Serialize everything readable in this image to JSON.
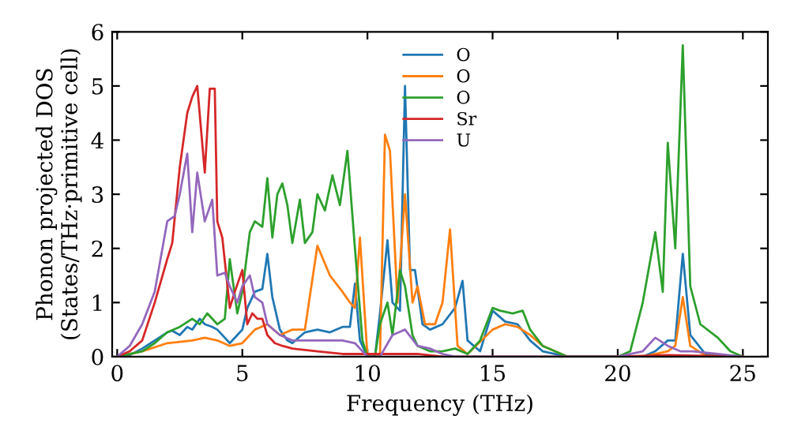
{
  "chart_data": {
    "type": "line",
    "xlabel": "Frequency (THz)",
    "ylabel": "Phonon projected DOS\n(States/THz·primitive cell)",
    "xlim": [
      -0.2,
      26
    ],
    "ylim": [
      0,
      6
    ],
    "xticks": [
      0,
      5,
      10,
      15,
      20,
      25
    ],
    "yticks": [
      0,
      1,
      2,
      3,
      4,
      5,
      6
    ],
    "legend": "top",
    "grid": false,
    "marker": "none",
    "line_style": "solid",
    "series": [
      {
        "name": "O",
        "color": "#1f77b4",
        "x": [
          0,
          0.5,
          1,
          1.5,
          2,
          2.2,
          2.5,
          2.8,
          3,
          3.3,
          3.5,
          3.8,
          4,
          4.3,
          4.5,
          4.8,
          5,
          5.2,
          5.5,
          5.8,
          6,
          6.2,
          6.5,
          6.8,
          7,
          7.5,
          8,
          8.5,
          9,
          9.3,
          9.5,
          9.7,
          10,
          10.3,
          10.5,
          10.8,
          11,
          11.3,
          11.5,
          11.7,
          11.9,
          12.2,
          12.5,
          13,
          13.5,
          13.8,
          14,
          14.5,
          15,
          15.5,
          16,
          16.5,
          17,
          18,
          20,
          21,
          21.5,
          22,
          22.3,
          22.6,
          22.9,
          23.5,
          24.5,
          25
        ],
        "values": [
          0,
          0.03,
          0.15,
          0.3,
          0.45,
          0.48,
          0.4,
          0.55,
          0.5,
          0.7,
          0.6,
          0.55,
          0.5,
          0.35,
          0.25,
          0.4,
          0.5,
          0.9,
          1.2,
          1.25,
          1.9,
          1.1,
          0.5,
          0.3,
          0.25,
          0.45,
          0.5,
          0.45,
          0.55,
          0.55,
          1.35,
          0.3,
          0,
          0,
          0.8,
          2.15,
          1.0,
          0.85,
          5.0,
          1.6,
          1.6,
          0.6,
          0.5,
          0.6,
          0.9,
          1.4,
          0.3,
          0.1,
          0.85,
          0.65,
          0.6,
          0.3,
          0.1,
          0,
          0,
          0,
          0.1,
          0.3,
          0.3,
          1.9,
          0.4,
          0.05,
          0.02,
          0
        ]
      },
      {
        "name": "O",
        "color": "#ff7f0e",
        "x": [
          0,
          1,
          2,
          3,
          3.5,
          4,
          4.5,
          5,
          5.5,
          6,
          6.5,
          7,
          7.5,
          8,
          8.5,
          9,
          9.3,
          9.5,
          9.7,
          10,
          10.5,
          10.7,
          10.9,
          11.2,
          11.5,
          11.8,
          12,
          12.3,
          12.7,
          13,
          13.3,
          13.6,
          14,
          15,
          15.5,
          16,
          16.5,
          17,
          18,
          20,
          21,
          22,
          22.3,
          22.6,
          22.9,
          23.5,
          25
        ],
        "values": [
          0,
          0.1,
          0.25,
          0.3,
          0.35,
          0.3,
          0.2,
          0.25,
          0.5,
          0.6,
          0.4,
          0.5,
          0.5,
          2.05,
          1.5,
          1.2,
          1.0,
          0.9,
          2.2,
          0,
          0,
          4.1,
          3.8,
          1.0,
          3.0,
          1.0,
          1.3,
          0.6,
          0.6,
          1.0,
          2.35,
          0.2,
          0.05,
          0.5,
          0.6,
          0.55,
          0.4,
          0.2,
          0,
          0,
          0,
          0.1,
          0.2,
          1.1,
          0.2,
          0.02,
          0
        ]
      },
      {
        "name": "O",
        "color": "#2ca02c",
        "x": [
          0,
          1,
          1.5,
          2,
          2.5,
          3,
          3.3,
          3.6,
          4,
          4.3,
          4.5,
          4.8,
          5,
          5.3,
          5.5,
          5.8,
          6,
          6.2,
          6.4,
          6.6,
          6.8,
          7,
          7.3,
          7.5,
          7.8,
          8,
          8.3,
          8.6,
          8.9,
          9.2,
          9.5,
          9.8,
          10,
          10.3,
          10.5,
          10.8,
          11,
          11.3,
          11.5,
          11.8,
          12,
          12.5,
          13,
          13.5,
          14,
          14.5,
          15,
          15.3,
          15.8,
          16.2,
          16.5,
          17,
          18,
          20,
          20.5,
          21,
          21.5,
          21.8,
          22,
          22.3,
          22.6,
          22.9,
          23.3,
          24,
          24.5,
          25
        ],
        "values": [
          0,
          0.1,
          0.25,
          0.45,
          0.55,
          0.7,
          0.6,
          0.8,
          0.6,
          0.7,
          1.8,
          0.8,
          1.2,
          2.3,
          2.5,
          2.4,
          3.3,
          2.2,
          3.0,
          3.2,
          2.8,
          2.1,
          2.9,
          2.1,
          2.3,
          3.0,
          2.7,
          3.35,
          2.8,
          3.8,
          2.0,
          0.3,
          0,
          0,
          0.6,
          1.0,
          0.4,
          1.6,
          1.3,
          0.4,
          0.2,
          0.1,
          0.1,
          0.15,
          0.05,
          0.3,
          0.9,
          0.85,
          0.8,
          0.85,
          0.5,
          0.2,
          0,
          0,
          0.1,
          1.0,
          2.3,
          1.2,
          3.95,
          2.0,
          5.75,
          1.3,
          0.6,
          0.35,
          0.1,
          0
        ]
      },
      {
        "name": "Sr",
        "color": "#d62728",
        "x": [
          0,
          0.5,
          1,
          1.5,
          2,
          2.2,
          2.5,
          2.8,
          3,
          3.2,
          3.5,
          3.7,
          3.9,
          4,
          4.2,
          4.5,
          4.7,
          5,
          5.2,
          5.4,
          5.6,
          5.8,
          6,
          6.3,
          6.6,
          7,
          8,
          9,
          10,
          11,
          12,
          13,
          20,
          22,
          25
        ],
        "values": [
          0,
          0.1,
          0.3,
          1.0,
          1.8,
          2.1,
          3.5,
          4.5,
          4.8,
          5.0,
          3.4,
          4.95,
          4.95,
          2.5,
          2.2,
          0.9,
          1.2,
          1.6,
          0.6,
          0.8,
          0.7,
          0.7,
          0.4,
          0.25,
          0.2,
          0.15,
          0.1,
          0.05,
          0.05,
          0.05,
          0.05,
          0,
          0,
          0.03,
          0
        ]
      },
      {
        "name": "U",
        "color": "#9467bd",
        "x": [
          0,
          0.5,
          1,
          1.5,
          2,
          2.3,
          2.5,
          2.8,
          3,
          3.2,
          3.5,
          3.8,
          4,
          4.3,
          4.5,
          4.8,
          5,
          5.3,
          5.5,
          5.8,
          6,
          6.5,
          7,
          8,
          9,
          9.5,
          10,
          10.5,
          11,
          11.5,
          12,
          12.5,
          13,
          13.5,
          20,
          21,
          21.5,
          22,
          22.5,
          23,
          24,
          25
        ],
        "values": [
          0,
          0.2,
          0.6,
          1.2,
          2.5,
          2.6,
          3.0,
          3.75,
          2.3,
          3.4,
          2.5,
          2.9,
          1.5,
          1.55,
          1.3,
          1.0,
          1.3,
          1.5,
          1.1,
          1.0,
          0.6,
          0.4,
          0.3,
          0.3,
          0.3,
          0.25,
          0,
          0,
          0.4,
          0.5,
          0.2,
          0.15,
          0.05,
          0,
          0,
          0.1,
          0.35,
          0.2,
          0.1,
          0.1,
          0.05,
          0
        ]
      }
    ]
  }
}
